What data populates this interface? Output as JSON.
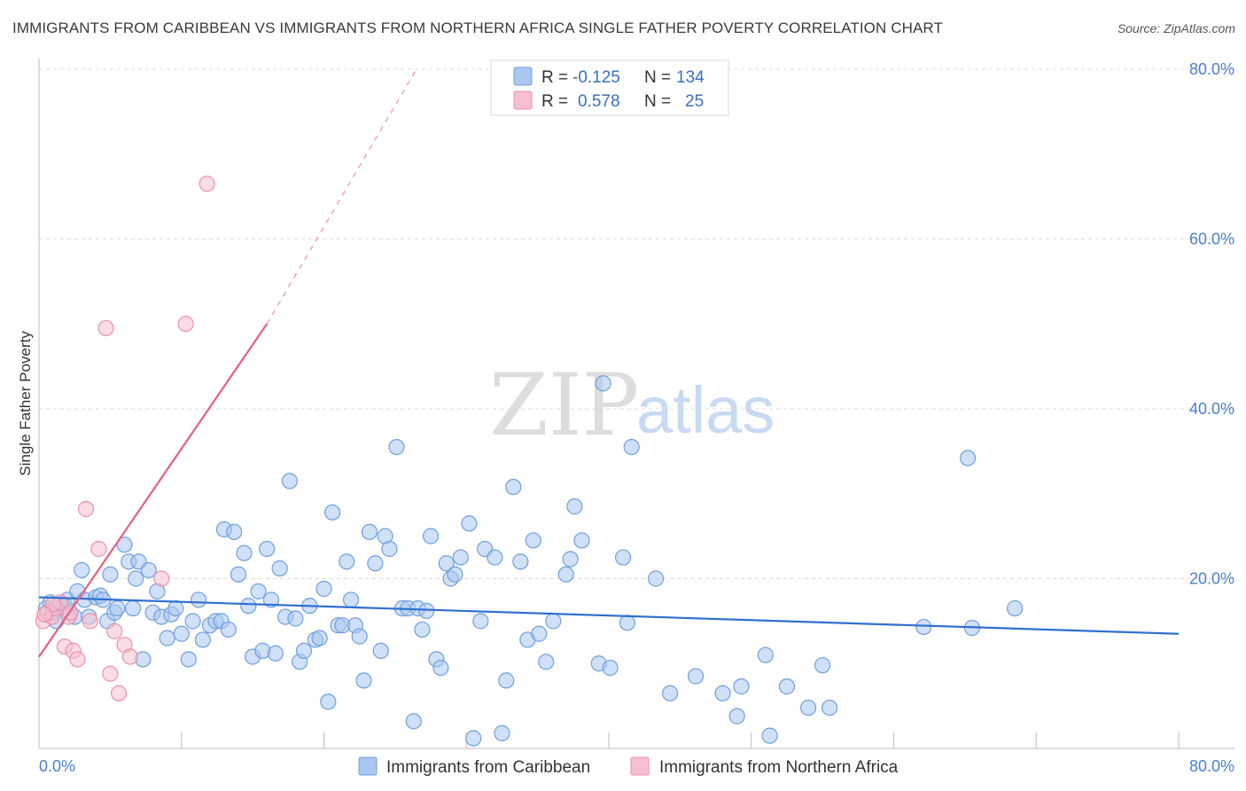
{
  "title": "IMMIGRANTS FROM CARIBBEAN VS IMMIGRANTS FROM NORTHERN AFRICA SINGLE FATHER POVERTY CORRELATION CHART",
  "source": "Source: ZipAtlas.com",
  "watermark": {
    "part1": "ZIP",
    "part2": "atlas"
  },
  "colors": {
    "blue_fill": "#a9c7ef",
    "blue_stroke": "#6f9fdf",
    "blue_line": "#2f6fcf",
    "pink_fill": "#f6bfd0",
    "pink_stroke": "#ee8fac",
    "pink_line": "#e5607f",
    "grid": "#dcdcdc",
    "tick_text": "#4a7fcf"
  },
  "legend": {
    "rows": [
      {
        "r_label": "R =",
        "r_value": "-0.125",
        "n_label": "N =",
        "n_value": "134"
      },
      {
        "r_label": "R =",
        "r_value": "0.578",
        "n_label": "N =",
        "n_value": "25"
      }
    ]
  },
  "bottom_legend": {
    "series1": "Immigrants from Caribbean",
    "series2": "Immigrants from Northern Africa"
  },
  "chart_data": {
    "type": "scatter",
    "xlabel": "",
    "ylabel": "Single Father Poverty",
    "xlim": [
      0,
      80
    ],
    "ylim": [
      0,
      80
    ],
    "x_tick_labels": [
      "0.0%",
      "80.0%"
    ],
    "y_tick_labels": [
      "80.0%",
      "60.0%",
      "40.0%",
      "20.0%"
    ],
    "y_ticks": [
      80,
      60,
      40,
      20
    ],
    "series": [
      {
        "name": "Immigrants from Caribbean",
        "color": "#a9c7ef",
        "trend": {
          "x": [
            0,
            80
          ],
          "y": [
            17.8,
            13.5
          ],
          "style": "solid"
        },
        "points": [
          [
            0.5,
            16.5
          ],
          [
            0.8,
            17.2
          ],
          [
            1,
            16
          ],
          [
            1.2,
            15
          ],
          [
            1.5,
            17
          ],
          [
            1.8,
            16.8
          ],
          [
            2,
            17.5
          ],
          [
            2.2,
            16
          ],
          [
            2.5,
            15.5
          ],
          [
            2.7,
            18.5
          ],
          [
            3,
            21
          ],
          [
            3.2,
            17.5
          ],
          [
            3.5,
            15.5
          ],
          [
            4,
            17.8
          ],
          [
            4.3,
            18
          ],
          [
            4.5,
            17.5
          ],
          [
            4.8,
            15
          ],
          [
            5,
            20.5
          ],
          [
            5.3,
            16
          ],
          [
            5.5,
            16.5
          ],
          [
            6,
            24
          ],
          [
            6.3,
            22
          ],
          [
            6.6,
            16.5
          ],
          [
            6.8,
            20
          ],
          [
            7,
            22
          ],
          [
            7.3,
            10.5
          ],
          [
            7.7,
            21
          ],
          [
            8,
            16
          ],
          [
            8.3,
            18.5
          ],
          [
            8.6,
            15.5
          ],
          [
            9,
            13
          ],
          [
            9.3,
            15.8
          ],
          [
            9.6,
            16.5
          ],
          [
            10,
            13.5
          ],
          [
            10.5,
            10.5
          ],
          [
            10.8,
            15
          ],
          [
            11.2,
            17.5
          ],
          [
            11.5,
            12.8
          ],
          [
            12,
            14.5
          ],
          [
            12.4,
            15
          ],
          [
            12.8,
            15
          ],
          [
            13,
            25.8
          ],
          [
            13.3,
            14
          ],
          [
            13.7,
            25.5
          ],
          [
            14,
            20.5
          ],
          [
            14.4,
            23
          ],
          [
            14.7,
            16.8
          ],
          [
            15,
            10.8
          ],
          [
            15.4,
            18.5
          ],
          [
            15.7,
            11.5
          ],
          [
            16,
            23.5
          ],
          [
            16.3,
            17.5
          ],
          [
            16.6,
            11.2
          ],
          [
            16.9,
            21.2
          ],
          [
            17.3,
            15.5
          ],
          [
            17.6,
            31.5
          ],
          [
            18,
            15.3
          ],
          [
            18.3,
            10.2
          ],
          [
            18.6,
            11.5
          ],
          [
            19,
            16.8
          ],
          [
            19.4,
            12.8
          ],
          [
            19.7,
            13
          ],
          [
            20,
            18.8
          ],
          [
            20.3,
            5.5
          ],
          [
            20.6,
            27.8
          ],
          [
            21,
            14.5
          ],
          [
            21.3,
            14.5
          ],
          [
            21.6,
            22
          ],
          [
            21.9,
            17.5
          ],
          [
            22.2,
            14.5
          ],
          [
            22.5,
            13.2
          ],
          [
            22.8,
            8
          ],
          [
            23.2,
            25.5
          ],
          [
            23.6,
            21.8
          ],
          [
            24,
            11.5
          ],
          [
            24.3,
            25
          ],
          [
            24.6,
            23.5
          ],
          [
            25.1,
            35.5
          ],
          [
            25.5,
            16.5
          ],
          [
            25.9,
            16.5
          ],
          [
            26.3,
            3.2
          ],
          [
            26.6,
            16.5
          ],
          [
            26.9,
            14
          ],
          [
            27.2,
            16.2
          ],
          [
            27.5,
            25
          ],
          [
            27.9,
            10.5
          ],
          [
            28.2,
            9.5
          ],
          [
            28.6,
            21.8
          ],
          [
            28.9,
            20
          ],
          [
            29.2,
            20.5
          ],
          [
            29.6,
            22.5
          ],
          [
            30.2,
            26.5
          ],
          [
            30.5,
            1.2
          ],
          [
            31,
            15
          ],
          [
            31.3,
            23.5
          ],
          [
            32,
            22.5
          ],
          [
            32.5,
            1.8
          ],
          [
            32.8,
            8
          ],
          [
            33.3,
            30.8
          ],
          [
            33.8,
            22
          ],
          [
            34.3,
            12.8
          ],
          [
            34.7,
            24.5
          ],
          [
            35.1,
            13.5
          ],
          [
            35.6,
            10.2
          ],
          [
            36.1,
            15
          ],
          [
            37,
            20.5
          ],
          [
            37.3,
            22.3
          ],
          [
            37.6,
            28.5
          ],
          [
            38.1,
            24.5
          ],
          [
            39.3,
            10
          ],
          [
            39.6,
            43
          ],
          [
            40.1,
            9.5
          ],
          [
            41,
            22.5
          ],
          [
            41.3,
            14.8
          ],
          [
            41.6,
            35.5
          ],
          [
            43.3,
            20
          ],
          [
            44.3,
            6.5
          ],
          [
            46.1,
            8.5
          ],
          [
            48,
            6.5
          ],
          [
            49,
            3.8
          ],
          [
            49.3,
            7.3
          ],
          [
            51,
            11
          ],
          [
            52.5,
            7.3
          ],
          [
            54,
            4.8
          ],
          [
            55,
            9.8
          ],
          [
            55.5,
            4.8
          ],
          [
            62.1,
            14.3
          ],
          [
            65.2,
            34.2
          ],
          [
            65.5,
            14.2
          ],
          [
            68.5,
            16.5
          ],
          [
            51.3,
            1.5
          ]
        ]
      },
      {
        "name": "Immigrants from Northern Africa",
        "color": "#f6bfd0",
        "trend": {
          "x": [
            0,
            16
          ],
          "y": [
            10.8,
            50
          ],
          "x_dashed_to": 26.5,
          "y_dashed_to": 80
        },
        "points": [
          [
            0.3,
            15
          ],
          [
            0.6,
            16
          ],
          [
            0.9,
            15.5
          ],
          [
            1.2,
            16.5
          ],
          [
            1.5,
            17.2
          ],
          [
            1.8,
            12
          ],
          [
            2.1,
            15.5
          ],
          [
            2.4,
            11.5
          ],
          [
            2.7,
            10.5
          ],
          [
            3.3,
            28.2
          ],
          [
            3.6,
            15
          ],
          [
            4.2,
            23.5
          ],
          [
            4.7,
            49.5
          ],
          [
            5,
            8.8
          ],
          [
            5.3,
            13.8
          ],
          [
            5.6,
            6.5
          ],
          [
            6,
            12.2
          ],
          [
            6.4,
            10.8
          ],
          [
            8.6,
            20
          ],
          [
            10.3,
            50
          ],
          [
            11.8,
            66.5
          ],
          [
            2.2,
            16
          ],
          [
            1,
            17
          ],
          [
            0.4,
            15.8
          ]
        ]
      }
    ]
  }
}
